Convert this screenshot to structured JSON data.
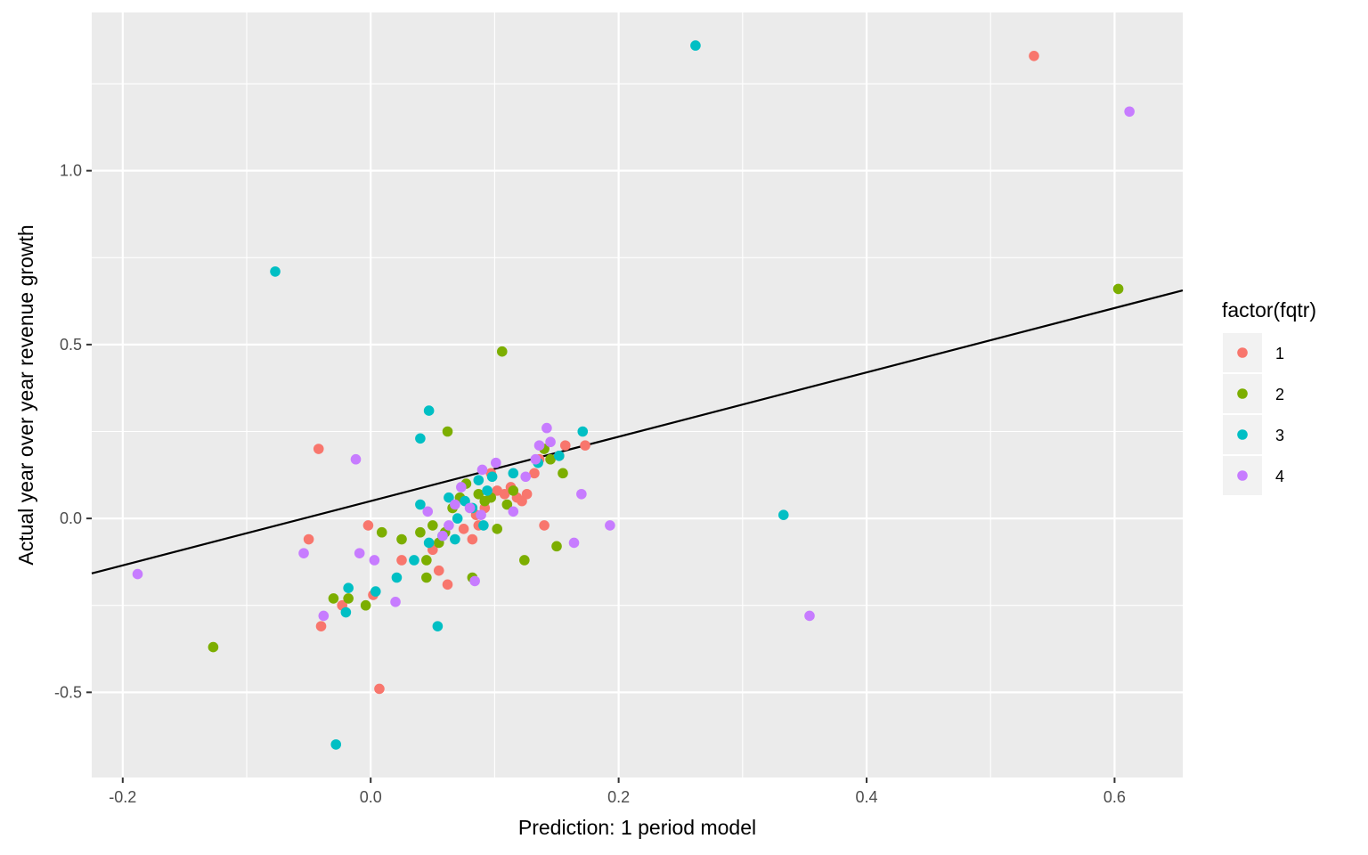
{
  "chart_data": {
    "type": "scatter",
    "title": "",
    "xlabel": "Prediction: 1 period model",
    "ylabel": "Actual year over year revenue growth",
    "xlim": [
      -0.225,
      0.655
    ],
    "ylim": [
      -0.745,
      1.455
    ],
    "x_ticks": [
      -0.2,
      0.0,
      0.2,
      0.4,
      0.6
    ],
    "x_tick_labels": [
      "-0.2",
      "0.0",
      "0.2",
      "0.4",
      "0.6"
    ],
    "y_ticks": [
      -0.5,
      0.0,
      0.5,
      1.0
    ],
    "y_tick_labels": [
      "-0.5",
      "0.0",
      "0.5",
      "1.0"
    ],
    "grid": true,
    "background": "#ebebeb",
    "legend": {
      "title": "factor(fqtr)",
      "placement": "right",
      "entries": [
        "1",
        "2",
        "3",
        "4"
      ]
    },
    "reference_line": {
      "intercept": 0.05,
      "slope": 0.925,
      "color": "#000000"
    },
    "series": [
      {
        "name": "1",
        "color": "#F8766D",
        "points": [
          [
            0.535,
            1.33
          ],
          [
            -0.042,
            0.2
          ],
          [
            -0.05,
            -0.06
          ],
          [
            -0.04,
            -0.31
          ],
          [
            -0.023,
            -0.25
          ],
          [
            -0.002,
            -0.02
          ],
          [
            0.002,
            -0.22
          ],
          [
            0.007,
            -0.49
          ],
          [
            0.025,
            -0.12
          ],
          [
            0.05,
            -0.09
          ],
          [
            0.055,
            -0.15
          ],
          [
            0.062,
            -0.19
          ],
          [
            0.075,
            -0.03
          ],
          [
            0.082,
            -0.06
          ],
          [
            0.087,
            -0.02
          ],
          [
            0.092,
            0.03
          ],
          [
            0.097,
            0.13
          ],
          [
            0.102,
            0.08
          ],
          [
            0.108,
            0.07
          ],
          [
            0.113,
            0.09
          ],
          [
            0.118,
            0.06
          ],
          [
            0.122,
            0.05
          ],
          [
            0.126,
            0.07
          ],
          [
            0.132,
            0.13
          ],
          [
            0.136,
            0.17
          ],
          [
            0.14,
            -0.02
          ],
          [
            0.152,
            0.18
          ],
          [
            0.157,
            0.21
          ],
          [
            0.173,
            0.21
          ],
          [
            0.085,
            0.01
          ]
        ]
      },
      {
        "name": "2",
        "color": "#7CAE00",
        "points": [
          [
            0.603,
            0.66
          ],
          [
            -0.127,
            -0.37
          ],
          [
            -0.03,
            -0.23
          ],
          [
            -0.018,
            -0.23
          ],
          [
            -0.004,
            -0.25
          ],
          [
            0.009,
            -0.04
          ],
          [
            0.025,
            -0.06
          ],
          [
            0.04,
            -0.04
          ],
          [
            0.045,
            -0.12
          ],
          [
            0.045,
            -0.17
          ],
          [
            0.05,
            -0.02
          ],
          [
            0.055,
            -0.07
          ],
          [
            0.06,
            -0.04
          ],
          [
            0.062,
            0.25
          ],
          [
            0.066,
            0.03
          ],
          [
            0.072,
            0.06
          ],
          [
            0.077,
            0.1
          ],
          [
            0.082,
            -0.17
          ],
          [
            0.087,
            0.07
          ],
          [
            0.092,
            0.05
          ],
          [
            0.097,
            0.06
          ],
          [
            0.102,
            -0.03
          ],
          [
            0.106,
            0.48
          ],
          [
            0.11,
            0.04
          ],
          [
            0.115,
            0.08
          ],
          [
            0.124,
            -0.12
          ],
          [
            0.14,
            0.2
          ],
          [
            0.145,
            0.17
          ],
          [
            0.15,
            -0.08
          ],
          [
            0.155,
            0.13
          ]
        ]
      },
      {
        "name": "3",
        "color": "#00BFC4",
        "points": [
          [
            0.262,
            1.36
          ],
          [
            -0.077,
            0.71
          ],
          [
            -0.028,
            -0.65
          ],
          [
            -0.02,
            -0.27
          ],
          [
            -0.018,
            -0.2
          ],
          [
            0.004,
            -0.21
          ],
          [
            0.021,
            -0.17
          ],
          [
            0.035,
            -0.12
          ],
          [
            0.04,
            0.04
          ],
          [
            0.04,
            0.23
          ],
          [
            0.047,
            0.31
          ],
          [
            0.054,
            -0.31
          ],
          [
            0.058,
            -0.05
          ],
          [
            0.063,
            0.06
          ],
          [
            0.07,
            0.0
          ],
          [
            0.076,
            0.05
          ],
          [
            0.082,
            0.03
          ],
          [
            0.087,
            0.11
          ],
          [
            0.091,
            -0.02
          ],
          [
            0.094,
            0.08
          ],
          [
            0.098,
            0.12
          ],
          [
            0.115,
            0.13
          ],
          [
            0.135,
            0.16
          ],
          [
            0.152,
            0.18
          ],
          [
            0.171,
            0.25
          ],
          [
            0.333,
            0.01
          ],
          [
            0.047,
            -0.07
          ],
          [
            0.068,
            -0.06
          ]
        ]
      },
      {
        "name": "4",
        "color": "#C77CFF",
        "points": [
          [
            0.612,
            1.17
          ],
          [
            -0.188,
            -0.16
          ],
          [
            -0.054,
            -0.1
          ],
          [
            -0.038,
            -0.28
          ],
          [
            -0.012,
            0.17
          ],
          [
            -0.009,
            -0.1
          ],
          [
            0.003,
            -0.12
          ],
          [
            0.02,
            -0.24
          ],
          [
            0.046,
            0.02
          ],
          [
            0.058,
            -0.05
          ],
          [
            0.063,
            -0.02
          ],
          [
            0.073,
            0.09
          ],
          [
            0.08,
            0.03
          ],
          [
            0.084,
            -0.18
          ],
          [
            0.089,
            0.01
          ],
          [
            0.09,
            0.14
          ],
          [
            0.101,
            0.16
          ],
          [
            0.115,
            0.02
          ],
          [
            0.125,
            0.12
          ],
          [
            0.133,
            0.17
          ],
          [
            0.136,
            0.21
          ],
          [
            0.142,
            0.26
          ],
          [
            0.145,
            0.22
          ],
          [
            0.164,
            -0.07
          ],
          [
            0.17,
            0.07
          ],
          [
            0.193,
            -0.02
          ],
          [
            0.354,
            -0.28
          ],
          [
            0.068,
            0.04
          ]
        ]
      }
    ]
  }
}
